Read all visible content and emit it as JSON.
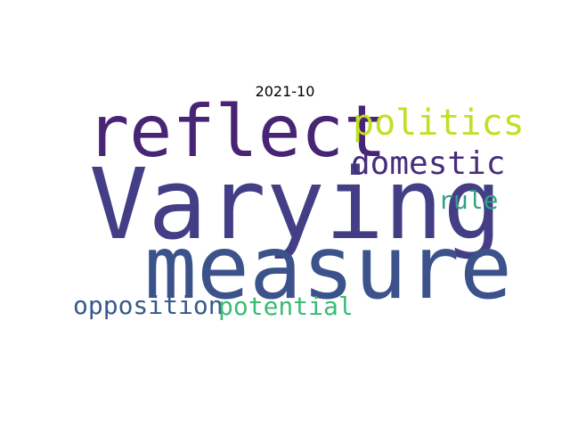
{
  "title": "2021-10",
  "words": [
    {
      "text": "Varying",
      "color": "#433e85"
    },
    {
      "text": "reflect",
      "color": "#482475"
    },
    {
      "text": "measure",
      "color": "#3b528b"
    },
    {
      "text": "politics",
      "color": "#c2df23"
    },
    {
      "text": "domestic",
      "color": "#472d7b"
    },
    {
      "text": "rule",
      "color": "#2ea386"
    },
    {
      "text": "opposition",
      "color": "#38598c"
    },
    {
      "text": "potential",
      "color": "#3bbb75"
    }
  ]
}
